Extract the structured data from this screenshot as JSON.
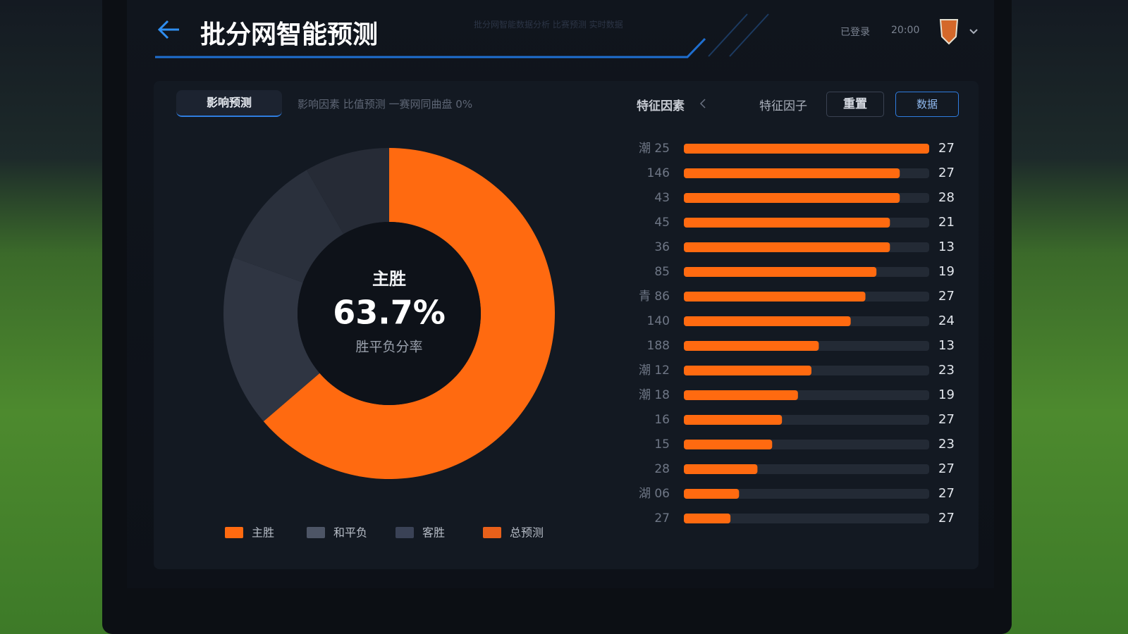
{
  "header": {
    "title": "批分网智能预测",
    "subtitle": "批分网智能数据分析 比赛预测 实时数据",
    "user": "已登录",
    "time": "20:00"
  },
  "tabs": [
    "影响预测",
    "影响因素 比值预测 一赛网同曲盘 0%"
  ],
  "controls": {
    "filter": "特征因素",
    "sort": "特征因子",
    "reset": "重置",
    "data": "数据"
  },
  "chart_data": [
    {
      "type": "pie",
      "values": [
        63.7,
        16.8,
        11.2,
        8.3
      ],
      "value_labels": [
        "63.7%",
        null,
        null,
        null
      ],
      "colors": [
        "#ff6a10",
        "#2f3542",
        "#2a303c",
        "#262b36"
      ],
      "center_label": "主胜",
      "caption": "胜平负分率",
      "legend": {
        "names": [
          "主胜",
          "和平负",
          "客胜",
          "总预测"
        ],
        "colors": [
          "#ff6a10",
          "#4d5566",
          "#3a4256",
          "#e8601a"
        ]
      }
    },
    {
      "type": "bar",
      "orientation": "horizontal",
      "categories": [
        "潮 25",
        "146",
        "43",
        "45",
        "36",
        "85",
        "青 86",
        "140",
        "188",
        "潮 12",
        "潮 18",
        "16",
        "15",
        "28",
        "湖 06",
        "27"
      ],
      "values": [
        100,
        88,
        88,
        84,
        84,
        78.5,
        74,
        68,
        55,
        52,
        46.5,
        40,
        36,
        30,
        22.5,
        19
      ],
      "counts": [
        27,
        27,
        28,
        21,
        13,
        19,
        27,
        24,
        13,
        23,
        19,
        27,
        23,
        27,
        27,
        27
      ],
      "color": "#ff6a10",
      "xlim": [
        0,
        100
      ]
    }
  ]
}
